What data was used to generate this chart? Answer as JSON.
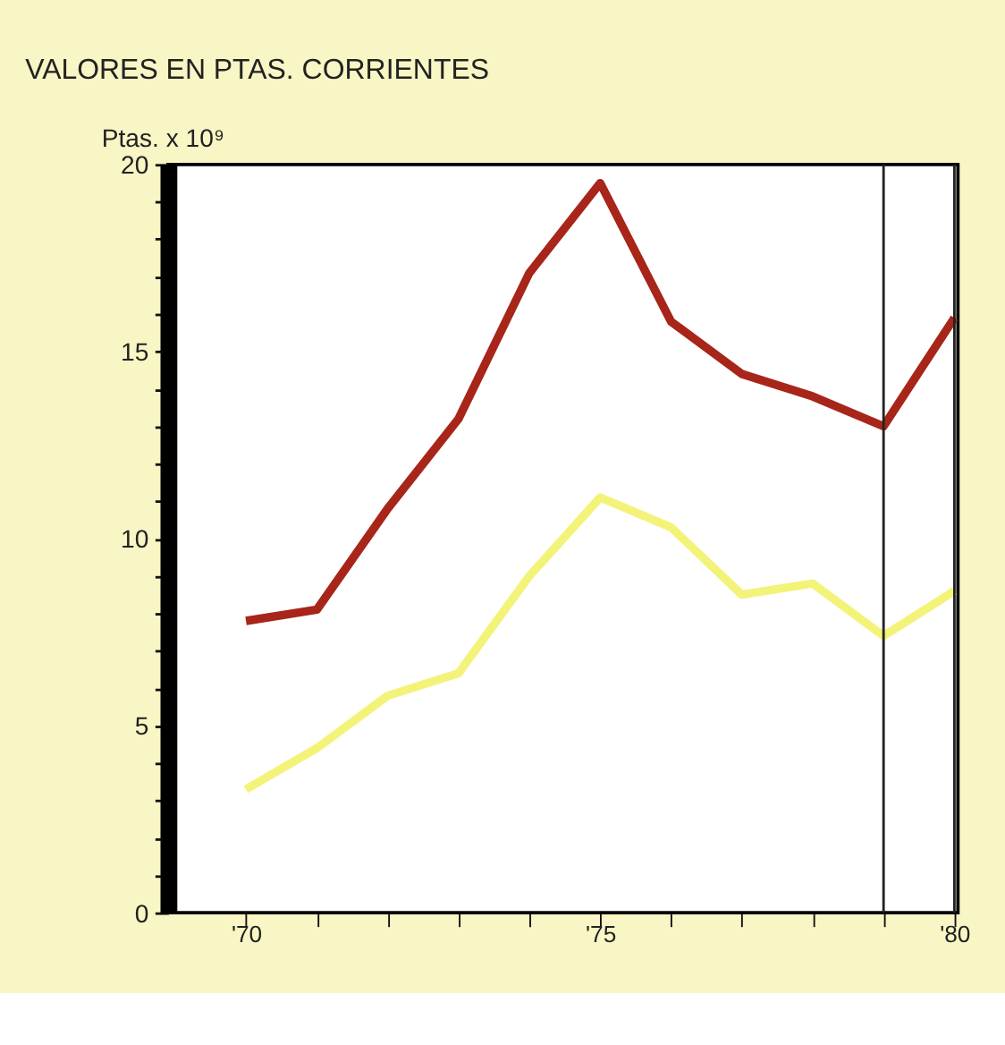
{
  "chart_data": {
    "type": "line",
    "title": "VALORES EN PTAS. CORRIENTES",
    "ylabel": "Ptas. x 10⁹",
    "x": [
      1970,
      1971,
      1972,
      1973,
      1974,
      1975,
      1976,
      1977,
      1978,
      1979,
      1980
    ],
    "series": [
      {
        "color": "#a8251a",
        "values": [
          7.8,
          8.1,
          10.8,
          13.2,
          17.1,
          19.5,
          15.8,
          14.4,
          13.8,
          13.0,
          15.9
        ]
      },
      {
        "color": "#f3f37a",
        "values": [
          3.3,
          4.4,
          5.8,
          6.4,
          9.0,
          11.1,
          10.3,
          8.5,
          8.8,
          7.4,
          8.6
        ]
      }
    ],
    "xlim": [
      1968.9,
      1980.05
    ],
    "xticks": [
      {
        "value": 1970,
        "label": "'70"
      },
      {
        "value": 1971,
        "label": null
      },
      {
        "value": 1972,
        "label": null
      },
      {
        "value": 1973,
        "label": null
      },
      {
        "value": 1974,
        "label": null
      },
      {
        "value": 1975,
        "label": "'75"
      },
      {
        "value": 1976,
        "label": null
      },
      {
        "value": 1977,
        "label": null
      },
      {
        "value": 1978,
        "label": null
      },
      {
        "value": 1979,
        "label": null
      },
      {
        "value": 1980,
        "label": "'80"
      }
    ],
    "ylim": [
      0,
      20
    ],
    "yticks": [
      0,
      {
        "value": 1,
        "label": null
      },
      {
        "value": 2,
        "label": null
      },
      {
        "value": 3,
        "label": null
      },
      {
        "value": 4,
        "label": null
      },
      5,
      {
        "value": 6,
        "label": null
      },
      {
        "value": 7,
        "label": null
      },
      {
        "value": 8,
        "label": null
      },
      {
        "value": 9,
        "label": null
      },
      10,
      {
        "value": 11,
        "label": null
      },
      {
        "value": 12,
        "label": null
      },
      {
        "value": 13,
        "label": null
      },
      {
        "value": 14,
        "label": null
      },
      15,
      {
        "value": 16,
        "label": null
      },
      {
        "value": 17,
        "label": null
      },
      {
        "value": 18,
        "label": null
      },
      {
        "value": 19,
        "label": null
      },
      20
    ],
    "ref_lines": [
      {
        "axis": "x",
        "value": 1979,
        "color": "#222222"
      },
      {
        "axis": "x",
        "value": 1980,
        "color": "#222222"
      }
    ],
    "grid": false,
    "marker": "none",
    "line_style": "solid"
  }
}
